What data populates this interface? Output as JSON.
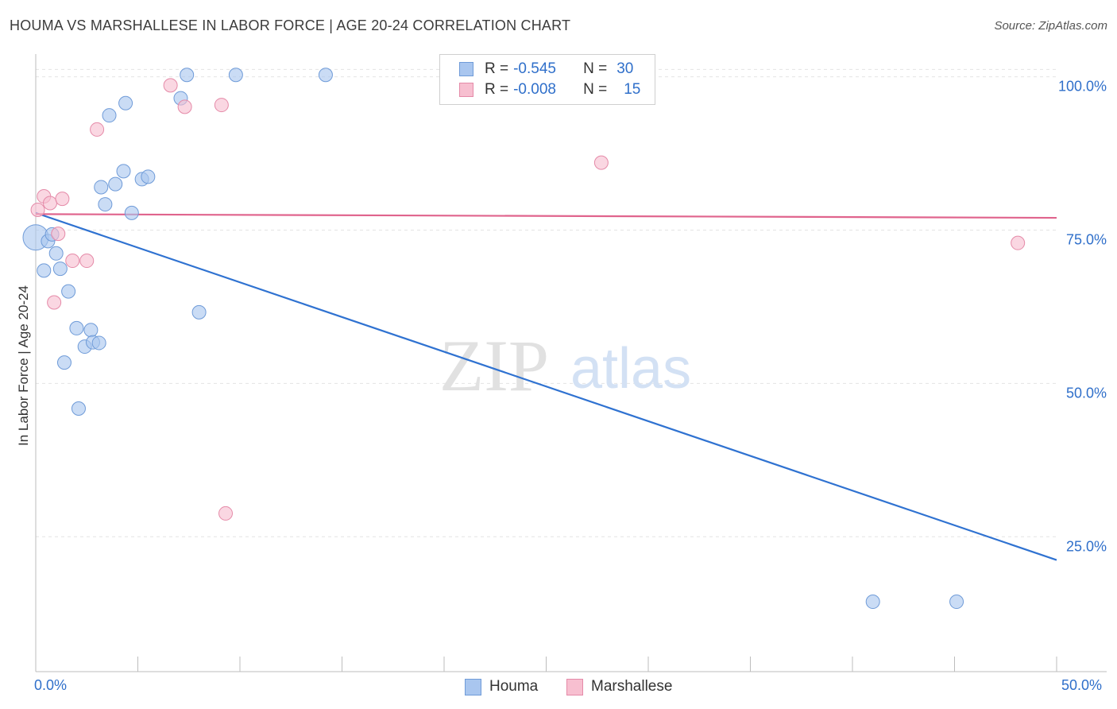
{
  "title": "HOUMA VS MARSHALLESE IN LABOR FORCE | AGE 20-24 CORRELATION CHART",
  "source": "Source: ZipAtlas.com",
  "watermark": {
    "zip": "ZIP",
    "atlas": "atlas"
  },
  "legend": {
    "rows": [
      {
        "r_label": "R =",
        "r_value": "-0.545",
        "n_label": "N =",
        "n_value": "30",
        "color": "#a9c6ef",
        "border": "#6f9bd8"
      },
      {
        "r_label": "R =",
        "r_value": "-0.008",
        "n_label": "N =",
        "n_value": "15",
        "color": "#f7bfd0",
        "border": "#e58aa8"
      }
    ]
  },
  "bottom_legend": [
    {
      "label": "Houma",
      "color": "#a9c6ef",
      "border": "#6f9bd8"
    },
    {
      "label": "Marshallese",
      "color": "#f7bfd0",
      "border": "#e58aa8"
    }
  ],
  "x_tick_labels": {
    "left": "0.0%",
    "right": "50.0%"
  },
  "chart_data": {
    "type": "scatter",
    "title": "HOUMA VS MARSHALLESE IN LABOR FORCE | AGE 20-24 CORRELATION CHART",
    "xlabel": "",
    "ylabel": "In Labor Force | Age 20-24",
    "xlim": [
      0,
      50
    ],
    "ylim": [
      3,
      105
    ],
    "y_ticks": [
      {
        "value": 25,
        "label": "25.0%"
      },
      {
        "value": 50,
        "label": "50.0%"
      },
      {
        "value": 75,
        "label": "75.0%"
      },
      {
        "value": 100,
        "label": "100.0%"
      }
    ],
    "grid": true,
    "series": [
      {
        "name": "Houma",
        "color": "#a9c6ef",
        "stroke": "#6f9bd8",
        "line_color": "#2f72d1",
        "trend": [
          [
            0,
            77.8
          ],
          [
            50,
            21.2
          ]
        ],
        "points": [
          [
            0.0,
            73.8
          ],
          [
            0.6,
            73.2
          ],
          [
            0.8,
            74.3
          ],
          [
            0.4,
            68.4
          ],
          [
            1.0,
            71.2
          ],
          [
            1.2,
            68.7
          ],
          [
            1.6,
            65.0
          ],
          [
            2.0,
            59.0
          ],
          [
            2.4,
            56.0
          ],
          [
            1.4,
            53.4
          ],
          [
            2.1,
            45.9
          ],
          [
            2.7,
            58.7
          ],
          [
            2.8,
            56.7
          ],
          [
            3.1,
            56.6
          ],
          [
            3.2,
            82.0
          ],
          [
            3.4,
            79.2
          ],
          [
            3.6,
            93.7
          ],
          [
            3.9,
            82.5
          ],
          [
            4.3,
            84.6
          ],
          [
            4.4,
            95.7
          ],
          [
            4.7,
            77.8
          ],
          [
            5.2,
            83.3
          ],
          [
            5.5,
            83.7
          ],
          [
            7.1,
            96.5
          ],
          [
            7.4,
            100.3
          ],
          [
            8.0,
            61.6
          ],
          [
            9.8,
            100.3
          ],
          [
            14.2,
            100.3
          ],
          [
            41.0,
            14.4
          ],
          [
            45.1,
            14.4
          ]
        ]
      },
      {
        "name": "Marshallese",
        "color": "#f7bfd0",
        "stroke": "#e58aa8",
        "line_color": "#e0648d",
        "trend": [
          [
            0,
            77.6
          ],
          [
            50,
            77.0
          ]
        ],
        "points": [
          [
            0.1,
            78.3
          ],
          [
            0.4,
            80.5
          ],
          [
            0.7,
            79.4
          ],
          [
            0.9,
            63.2
          ],
          [
            1.1,
            74.4
          ],
          [
            1.3,
            80.1
          ],
          [
            1.8,
            70.0
          ],
          [
            2.5,
            70.0
          ],
          [
            3.0,
            91.4
          ],
          [
            6.6,
            98.6
          ],
          [
            7.3,
            95.1
          ],
          [
            9.1,
            95.4
          ],
          [
            9.3,
            28.8
          ],
          [
            27.7,
            86.0
          ],
          [
            48.1,
            72.9
          ]
        ]
      }
    ]
  }
}
